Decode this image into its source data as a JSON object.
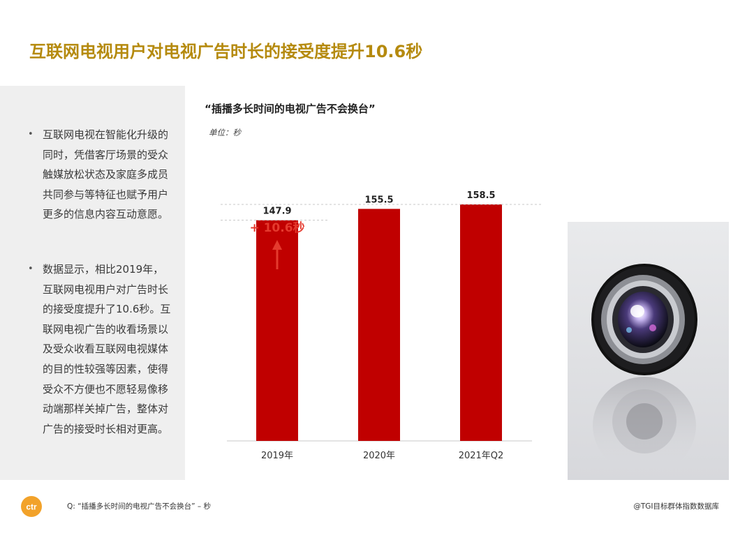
{
  "title": "互联网电视用户对电视广告时长的接受度提升10.6秒",
  "bullets": [
    "互联网电视在智能化升级的同时，凭借客厅场景的受众触媒放松状态及家庭多成员共同参与等特征也赋予用户更多的信息内容互动意愿。",
    "数据显示，相比2019年，互联网电视用户对广告时长的接受度提升了10.6秒。互联网电视广告的收看场景以及受众收看互联网电视媒体的目的性较强等因素，使得受众不方便也不愿轻易像移动端那样关掉广告，整体对广告的接受时长相对更高。"
  ],
  "bullet_symbol": "•",
  "chart_title": "“插播多长时间的电视广告不会换台”",
  "unit_label": "单位：秒",
  "chart_data": {
    "type": "bar",
    "categories": [
      "2019年",
      "2020年",
      "2021年Q2"
    ],
    "values": [
      147.9,
      155.5,
      158.5
    ],
    "value_labels": [
      "147.9",
      "155.5",
      "158.5"
    ],
    "annotation": "+ 10.6秒",
    "bar_color": "#c00000",
    "annotation_color": "#e53a2e",
    "grid": false
  },
  "photo": {
    "subject": "camera lens",
    "icon": "lens-icon"
  },
  "logo_text": "ctr",
  "footer_question": "Q: “插播多长时间的电视广告不会换台” – 秒",
  "footer_source": "@TGI目标群体指数数据库",
  "colors": {
    "title": "#b58a0e",
    "panel_bg": "#efefef",
    "logo": "#f2a22a"
  }
}
